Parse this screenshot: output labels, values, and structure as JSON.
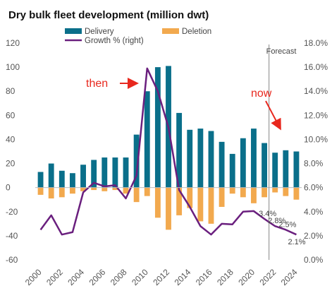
{
  "chart_data": {
    "type": "bar",
    "title": "Dry bulk fleet development (million dwt)",
    "categories": [
      "2000",
      "2001",
      "2002",
      "2003",
      "2004",
      "2005",
      "2006",
      "2007",
      "2008",
      "2009",
      "2010",
      "2011",
      "2012",
      "2013",
      "2014",
      "2015",
      "2016",
      "2017",
      "2018",
      "2019",
      "2020",
      "2021",
      "2022",
      "2023",
      "2024"
    ],
    "x_tick_labels": [
      "2000",
      "2002",
      "2004",
      "2006",
      "2008",
      "2010",
      "2012",
      "2014",
      "2016",
      "2018",
      "2020",
      "2022",
      "2024"
    ],
    "series": [
      {
        "name": "Delivery",
        "axis": "left",
        "type": "bar",
        "color": "#0a6f8a",
        "values": [
          13,
          20,
          14,
          12,
          19,
          23,
          25,
          25,
          25,
          44,
          80,
          100,
          101,
          62,
          48,
          49,
          47,
          38,
          28,
          41,
          49,
          37,
          29,
          31,
          30
        ]
      },
      {
        "name": "Deletion",
        "axis": "left",
        "type": "bar",
        "color": "#f2a94e",
        "values": [
          -6,
          -9,
          -8,
          -5,
          -3,
          -2,
          -3,
          -2,
          -5,
          -12,
          -7,
          -25,
          -35,
          -23,
          -17,
          -28,
          -30,
          -16,
          -5,
          -8,
          -13,
          -8,
          -4,
          -7,
          -10
        ]
      },
      {
        "name": "Growth % (right)",
        "axis": "right",
        "type": "line",
        "color": "#6a1f7e",
        "values": [
          2.5,
          3.7,
          2.1,
          2.3,
          5.6,
          6.4,
          6.1,
          6.2,
          5.1,
          7.0,
          15.9,
          14.0,
          11.0,
          5.8,
          4.4,
          2.8,
          2.1,
          3.0,
          2.95,
          4.0,
          4.05,
          3.4,
          2.8,
          2.5,
          2.1
        ]
      }
    ],
    "y_left": {
      "min": -60,
      "max": 120,
      "step": 20,
      "ticks": [
        "-60",
        "-40",
        "-20",
        "0",
        "20",
        "40",
        "60",
        "80",
        "100",
        "120"
      ]
    },
    "y_right": {
      "min": 0,
      "max": 18,
      "step": 2,
      "ticks": [
        "0.0%",
        "2.0%",
        "4.0%",
        "6.0%",
        "8.0%",
        "10.0%",
        "12.0%",
        "14.0%",
        "16.0%",
        "18.0%"
      ]
    },
    "forecast_label": "Forecast",
    "forecast_start_index": 22,
    "data_labels": [
      {
        "index": 21,
        "text": "3.4%"
      },
      {
        "index": 22,
        "text": "2.8%"
      },
      {
        "index": 23,
        "text": "2.5%"
      },
      {
        "index": 24,
        "text": "2.1%"
      }
    ],
    "annotations": [
      {
        "text": "then",
        "color": "#e8281e",
        "target_index": 10
      },
      {
        "text": "now",
        "color": "#e8281e",
        "target_index": 24
      }
    ],
    "grid": false,
    "legend_placement": "top"
  }
}
